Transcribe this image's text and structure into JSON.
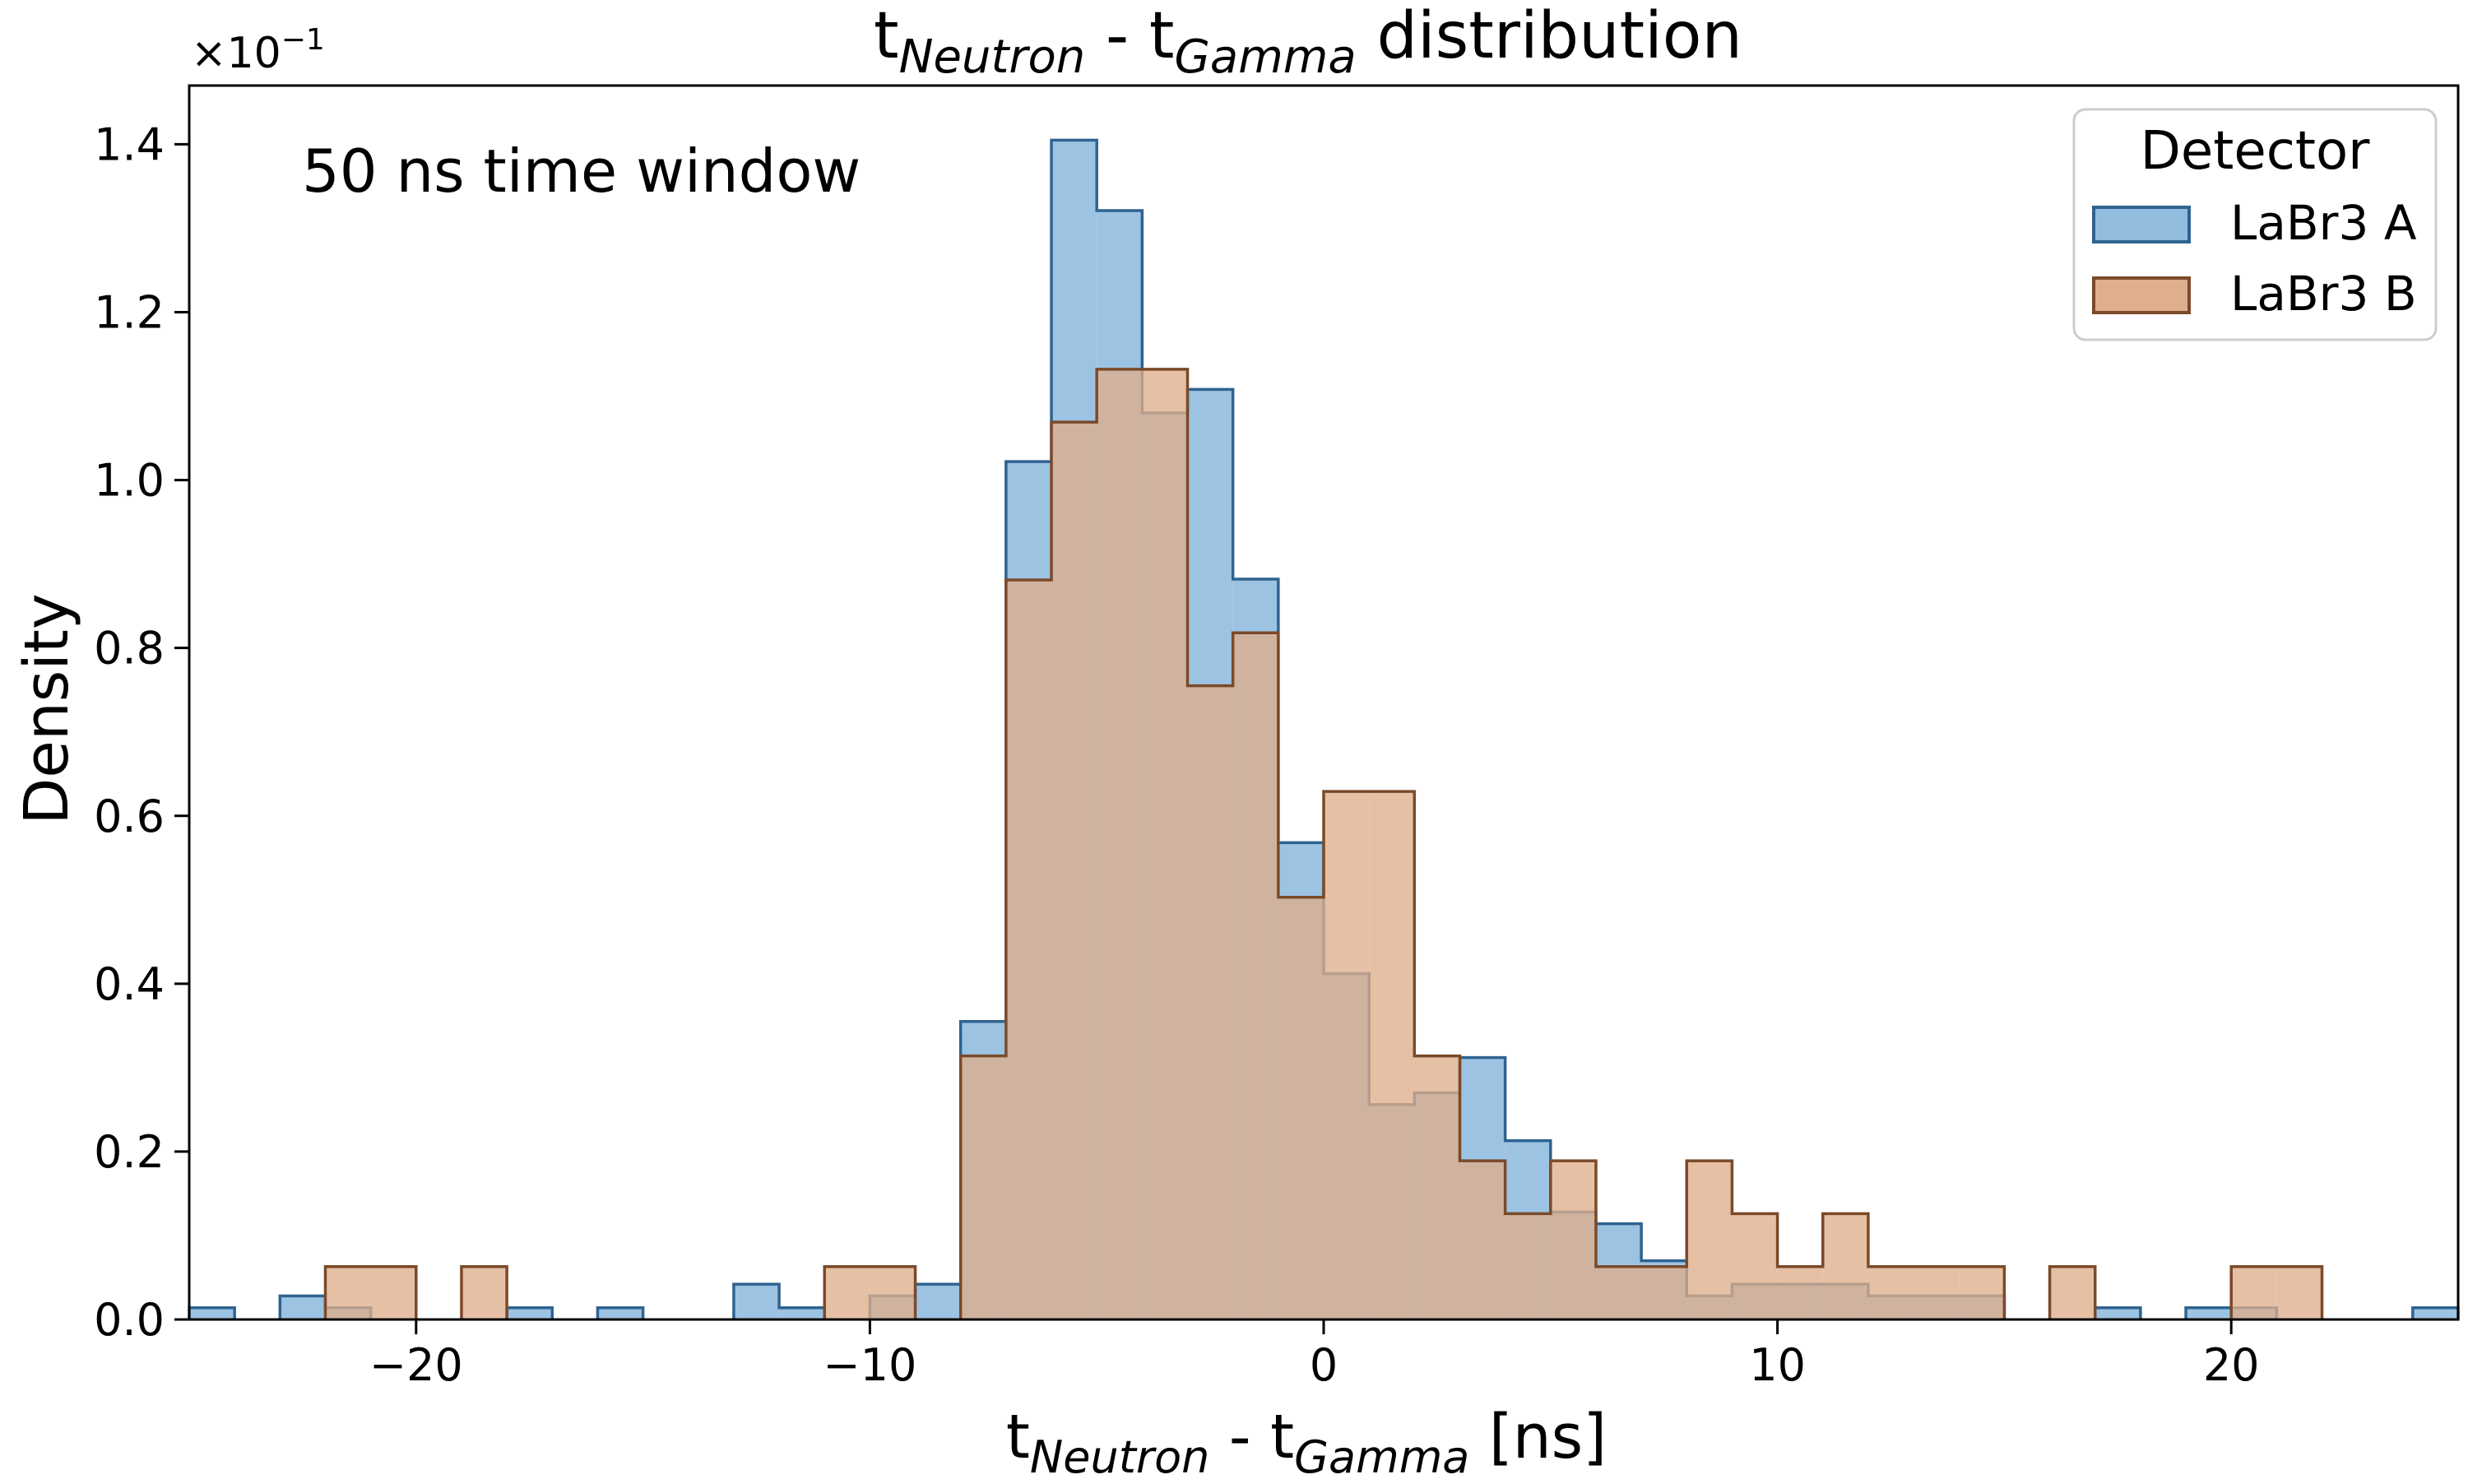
{
  "chart_data": {
    "type": "histogram",
    "title": {
      "base": "t",
      "sub1": "Neutron",
      "mid": " - t",
      "sub2": "Gamma",
      "tail": " distribution"
    },
    "xlabel": {
      "base": "t",
      "sub1": "Neutron",
      "mid": " - t",
      "sub2": "Gamma",
      "tail": " [ns]"
    },
    "ylabel": "Density",
    "y_scale_note": {
      "base": "×10",
      "exp": "−1"
    },
    "annotation": "50 ns time window",
    "xlim": [
      -25,
      25
    ],
    "ylim": [
      0,
      1.47
    ],
    "bin_width": 1,
    "x_ticks": [
      -20,
      -10,
      0,
      10,
      20
    ],
    "x_tick_labels": [
      "−20",
      "−10",
      "0",
      "10",
      "20"
    ],
    "y_ticks": [
      0,
      0.2,
      0.4,
      0.6,
      0.8,
      1.0,
      1.2,
      1.4
    ],
    "y_tick_labels": [
      "0.0",
      "0.2",
      "0.4",
      "0.6",
      "0.8",
      "1.0",
      "1.2",
      "1.4"
    ],
    "legend": {
      "title": "Detector",
      "placement": "top-right"
    },
    "series": [
      {
        "name": "LaBr3 A",
        "fill": "#92bddf",
        "stroke": "#2f6390",
        "bins": [
          [
            -25,
            0.014
          ],
          [
            -23,
            0.028
          ],
          [
            -22,
            0.014
          ],
          [
            -18,
            0.014
          ],
          [
            -16,
            0.014
          ],
          [
            -13,
            0.042
          ],
          [
            -12,
            0.014
          ],
          [
            -10,
            0.028
          ],
          [
            -9,
            0.042
          ],
          [
            -8,
            0.355
          ],
          [
            -7,
            1.022
          ],
          [
            -6,
            1.405
          ],
          [
            -5,
            1.321
          ],
          [
            -4,
            1.08
          ],
          [
            -3,
            1.108
          ],
          [
            -2,
            0.882
          ],
          [
            -1,
            0.568
          ],
          [
            0,
            0.412
          ],
          [
            1,
            0.256
          ],
          [
            2,
            0.27
          ],
          [
            3,
            0.312
          ],
          [
            4,
            0.213
          ],
          [
            5,
            0.128
          ],
          [
            6,
            0.114
          ],
          [
            7,
            0.07
          ],
          [
            8,
            0.028
          ],
          [
            9,
            0.042
          ],
          [
            10,
            0.042
          ],
          [
            11,
            0.042
          ],
          [
            12,
            0.028
          ],
          [
            13,
            0.028
          ],
          [
            14,
            0.028
          ],
          [
            17,
            0.014
          ],
          [
            19,
            0.014
          ],
          [
            20,
            0.014
          ],
          [
            24,
            0.014
          ]
        ]
      },
      {
        "name": "LaBr3 B",
        "fill": "#dfae8c",
        "stroke": "#7a4a2a",
        "bins": [
          [
            -22,
            0.063
          ],
          [
            -21,
            0.063
          ],
          [
            -19,
            0.063
          ],
          [
            -11,
            0.063
          ],
          [
            -10,
            0.063
          ],
          [
            -8,
            0.314
          ],
          [
            -7,
            0.881
          ],
          [
            -6,
            1.069
          ],
          [
            -5,
            1.132
          ],
          [
            -4,
            1.132
          ],
          [
            -3,
            0.755
          ],
          [
            -2,
            0.818
          ],
          [
            -1,
            0.503
          ],
          [
            0,
            0.629
          ],
          [
            1,
            0.629
          ],
          [
            2,
            0.314
          ],
          [
            3,
            0.189
          ],
          [
            4,
            0.126
          ],
          [
            5,
            0.189
          ],
          [
            6,
            0.063
          ],
          [
            7,
            0.063
          ],
          [
            8,
            0.189
          ],
          [
            9,
            0.126
          ],
          [
            10,
            0.063
          ],
          [
            11,
            0.126
          ],
          [
            12,
            0.063
          ],
          [
            13,
            0.063
          ],
          [
            14,
            0.063
          ],
          [
            16,
            0.063
          ],
          [
            20,
            0.063
          ],
          [
            21,
            0.063
          ]
        ]
      }
    ]
  }
}
